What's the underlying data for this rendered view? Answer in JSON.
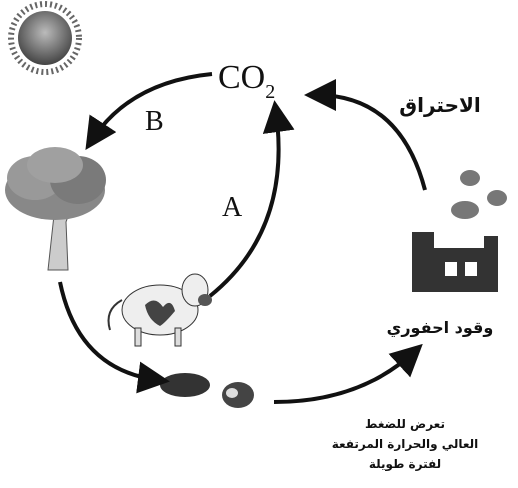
{
  "labels": {
    "co2": {
      "main": "CO",
      "sub": "2"
    },
    "b": "B",
    "a": "A",
    "combustion": "الاحتراق",
    "fossil_fuel": "وقود احفوري",
    "conditions": [
      "تعرض للضغط",
      "العالي والحرارة المرتفعة",
      "لفترة طويلة"
    ]
  }
}
